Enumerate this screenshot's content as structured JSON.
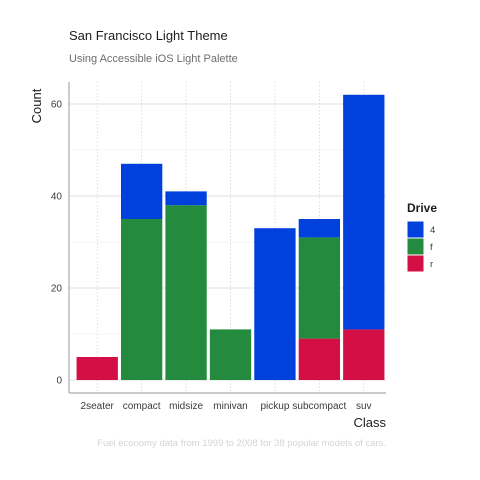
{
  "chart_data": {
    "type": "bar",
    "stacked": true,
    "title": "San Francisco Light Theme",
    "subtitle": "Using Accessible iOS Light Palette",
    "caption": "Fuel economy data from 1999 to 2008 for 38 popular models of cars.",
    "xlabel": "Class",
    "ylabel": "Count",
    "categories": [
      "2seater",
      "compact",
      "midsize",
      "minivan",
      "pickup",
      "subcompact",
      "suv"
    ],
    "yticks": [
      0,
      20,
      40,
      60
    ],
    "ylim": [
      -3,
      65
    ],
    "grid": true,
    "legend": {
      "title": "Drive",
      "position": "right"
    },
    "series": [
      {
        "name": "r",
        "color": "#D30F45",
        "values": [
          5,
          0,
          0,
          0,
          0,
          9,
          11
        ]
      },
      {
        "name": "f",
        "color": "#248A3D",
        "values": [
          0,
          35,
          38,
          11,
          0,
          22,
          0
        ]
      },
      {
        "name": "4",
        "color": "#0040DD",
        "values": [
          0,
          12,
          3,
          0,
          33,
          4,
          51
        ]
      }
    ],
    "legend_order": [
      "4",
      "f",
      "r"
    ]
  }
}
